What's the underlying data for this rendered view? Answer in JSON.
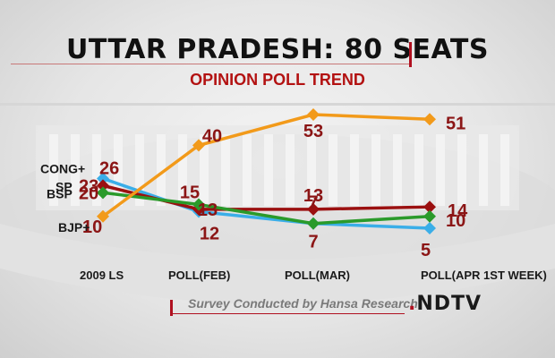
{
  "header": {
    "title": "UTTAR PRADESH: 80 SEATS",
    "subtitle": "OPINION POLL TREND"
  },
  "footer": {
    "source": "Survey Conducted by Hansa Research",
    "logo": "NDTV"
  },
  "colors": {
    "BJP+": "#f29a1a",
    "CONG+": "#3aaee8",
    "SP": "#9b1010",
    "BSP": "#2a9a2a",
    "label": "#8b1515"
  },
  "chart_data": {
    "type": "line",
    "title": "UTTAR PRADESH: 80 SEATS",
    "subtitle": "OPINION POLL TREND",
    "categories": [
      "2009 LS",
      "POLL(FEB)",
      "POLL(MAR)",
      "POLL(APR 1ST WEEK)"
    ],
    "series": [
      {
        "name": "BJP+",
        "values": [
          10,
          40,
          53,
          51
        ]
      },
      {
        "name": "CONG+",
        "values": [
          26,
          12,
          7,
          5
        ]
      },
      {
        "name": "SP",
        "values": [
          23,
          13,
          13,
          14
        ]
      },
      {
        "name": "BSP",
        "values": [
          20,
          15,
          7,
          10
        ]
      }
    ],
    "legend": "left",
    "grid": false
  }
}
